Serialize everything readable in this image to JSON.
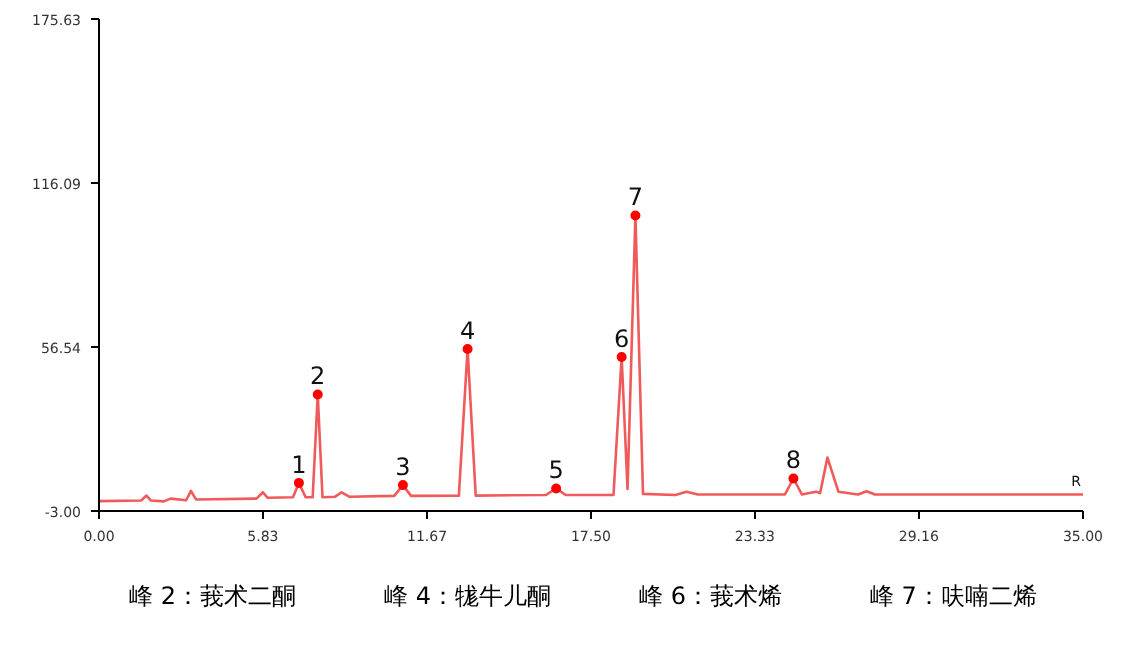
{
  "chart_data": {
    "type": "line",
    "x": [
      0,
      1.5,
      1.69,
      1.85,
      2.3,
      2.55,
      3.1,
      3.27,
      3.45,
      5.6,
      5.83,
      6.0,
      6.9,
      7.11,
      7.35,
      7.6,
      7.78,
      7.95,
      8.4,
      8.63,
      8.9,
      10.5,
      10.81,
      11.1,
      12.8,
      13.11,
      13.4,
      15.9,
      16.26,
      16.6,
      18.3,
      18.59,
      18.8,
      19.08,
      19.35,
      20.5,
      20.9,
      21.3,
      24.4,
      24.7,
      25.0,
      25.5,
      25.65,
      25.91,
      26.3,
      27.0,
      27.3,
      27.6,
      30.5,
      35
    ],
    "series": [
      {
        "color": "#f05a5a",
        "values": [
          0.6,
          0.8,
          2.6,
          0.8,
          0.5,
          1.5,
          0.9,
          4.3,
          1.2,
          1.5,
          3.8,
          1.8,
          2.0,
          7.2,
          2.0,
          2.0,
          39.3,
          2.0,
          2.2,
          3.8,
          2.2,
          2.5,
          6.4,
          2.5,
          2.6,
          55.8,
          2.6,
          2.8,
          5.2,
          2.8,
          2.8,
          52.9,
          5,
          104.3,
          3.2,
          2.8,
          4.0,
          3.0,
          3.0,
          8.8,
          3.0,
          4.0,
          3.5,
          16.4,
          4.0,
          3.0,
          4.2,
          3.0,
          3.0,
          3.0
        ]
      },
      {
        "type": "scatter",
        "marker": "circle",
        "color": "#ff0000",
        "x": [
          7.11,
          7.78,
          10.81,
          13.11,
          16.26,
          18.59,
          19.08,
          24.7
        ],
        "values": [
          7.2,
          39.3,
          6.4,
          55.8,
          5.2,
          52.9,
          104.3,
          8.8
        ]
      }
    ],
    "xlim": [
      0,
      35
    ],
    "ylim": [
      -3,
      175.63
    ],
    "xticks": [
      {
        "value": 0,
        "label": "0.00"
      },
      {
        "value": 5.83,
        "label": "5.83"
      },
      {
        "value": 11.67,
        "label": "11.67"
      },
      {
        "value": 17.5,
        "label": "17.50"
      },
      {
        "value": 23.33,
        "label": "23.33"
      },
      {
        "value": 29.16,
        "label": "29.16"
      },
      {
        "value": 35,
        "label": "35.00"
      }
    ],
    "yticks": [
      {
        "value": -3,
        "label": "-3.00"
      },
      {
        "value": 56.54,
        "label": "56.54"
      },
      {
        "value": 116.09,
        "label": "116.09"
      },
      {
        "value": 175.63,
        "label": "175.63"
      }
    ],
    "grid": false,
    "line_style": "solid",
    "annotations": [
      {
        "text": "1",
        "x": 7.11,
        "y": 7.2
      },
      {
        "text": "2",
        "x": 7.78,
        "y": 39.3
      },
      {
        "text": "3",
        "x": 10.81,
        "y": 6.4
      },
      {
        "text": "4",
        "x": 13.11,
        "y": 55.8
      },
      {
        "text": "5",
        "x": 16.26,
        "y": 5.2
      },
      {
        "text": "6",
        "x": 18.59,
        "y": 52.9
      },
      {
        "text": "7",
        "x": 19.08,
        "y": 104.3
      },
      {
        "text": "8",
        "x": 24.7,
        "y": 8.8
      },
      {
        "text": "R",
        "x": 35,
        "y": 3.0
      },
      "峰 2：莪术二酮",
      "峰 4：牻牛儿酮",
      "峰 6：莪术烯",
      "峰 7：呋喃二烯"
    ]
  }
}
